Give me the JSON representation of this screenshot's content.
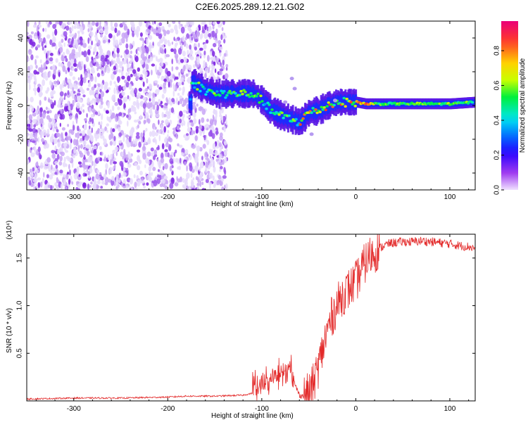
{
  "figure": {
    "title": "C2E6.2025.289.12.21.G02"
  },
  "chart_data": [
    {
      "type": "heatmap",
      "name": "spectrogram",
      "xlabel": "Height of straight line (km)",
      "ylabel": "Frequency (Hz)",
      "xlim": [
        -350,
        127
      ],
      "ylim": [
        -50,
        50
      ],
      "xticks": [
        -300,
        -200,
        -100,
        0,
        100
      ],
      "yticks": [
        -40,
        -20,
        0,
        20,
        40
      ],
      "noise_region": [
        -350,
        -137
      ],
      "signal_track": [
        {
          "x": -175,
          "f": 14
        },
        {
          "x": -160,
          "f": 9
        },
        {
          "x": -150,
          "f": 7
        },
        {
          "x": -140,
          "f": 7
        },
        {
          "x": -130,
          "f": 7
        },
        {
          "x": -120,
          "f": 7
        },
        {
          "x": -110,
          "f": 7
        },
        {
          "x": -100,
          "f": 3
        },
        {
          "x": -90,
          "f": -3
        },
        {
          "x": -80,
          "f": -6
        },
        {
          "x": -70,
          "f": -8
        },
        {
          "x": -60,
          "f": -10
        },
        {
          "x": -50,
          "f": -4
        },
        {
          "x": -40,
          "f": -3
        },
        {
          "x": -30,
          "f": 0
        },
        {
          "x": -20,
          "f": 2
        },
        {
          "x": -10,
          "f": 2
        },
        {
          "x": 0,
          "f": 2
        },
        {
          "x": 10,
          "f": 1
        },
        {
          "x": 20,
          "f": 1
        },
        {
          "x": 60,
          "f": 1
        },
        {
          "x": 100,
          "f": 1
        },
        {
          "x": 127,
          "f": 2
        }
      ],
      "colorbar": {
        "label": "Normalized spectral amplitude",
        "range": [
          0,
          0.97
        ],
        "ticks": [
          0.0,
          0.2,
          0.4,
          0.6,
          0.8
        ]
      }
    },
    {
      "type": "line",
      "name": "snr",
      "xlabel": "Height of straight line (km)",
      "ylabel": "SNR (10 * v/v)",
      "exponent_label": "(x10⁴)",
      "xlim": [
        -350,
        127
      ],
      "ylim": [
        0,
        1.75
      ],
      "xticks": [
        -300,
        -200,
        -100,
        0,
        100
      ],
      "yticks": [
        0.5,
        1.0,
        1.5
      ],
      "color": "#e32a2a",
      "series": [
        {
          "name": "SNR",
          "x": [
            -350,
            -300,
            -250,
            -200,
            -180,
            -170,
            -150,
            -120,
            -110,
            -100,
            -90,
            -80,
            -75,
            -70,
            -60,
            -55,
            -50,
            -45,
            -40,
            -35,
            -30,
            -25,
            -20,
            -15,
            -10,
            -5,
            0,
            5,
            10,
            15,
            20,
            25,
            30,
            35,
            40,
            50,
            60,
            70,
            80,
            90,
            100,
            110,
            120,
            127
          ],
          "y": [
            0.02,
            0.03,
            0.03,
            0.04,
            0.05,
            0.05,
            0.05,
            0.06,
            0.08,
            0.13,
            0.18,
            0.25,
            0.3,
            0.3,
            0.06,
            0.05,
            0.08,
            0.18,
            0.35,
            0.55,
            0.75,
            0.9,
            1.0,
            1.1,
            1.15,
            1.2,
            1.25,
            1.35,
            1.45,
            1.52,
            1.56,
            1.6,
            1.63,
            1.65,
            1.66,
            1.67,
            1.67,
            1.68,
            1.67,
            1.66,
            1.65,
            1.63,
            1.62,
            1.6
          ]
        }
      ]
    }
  ]
}
